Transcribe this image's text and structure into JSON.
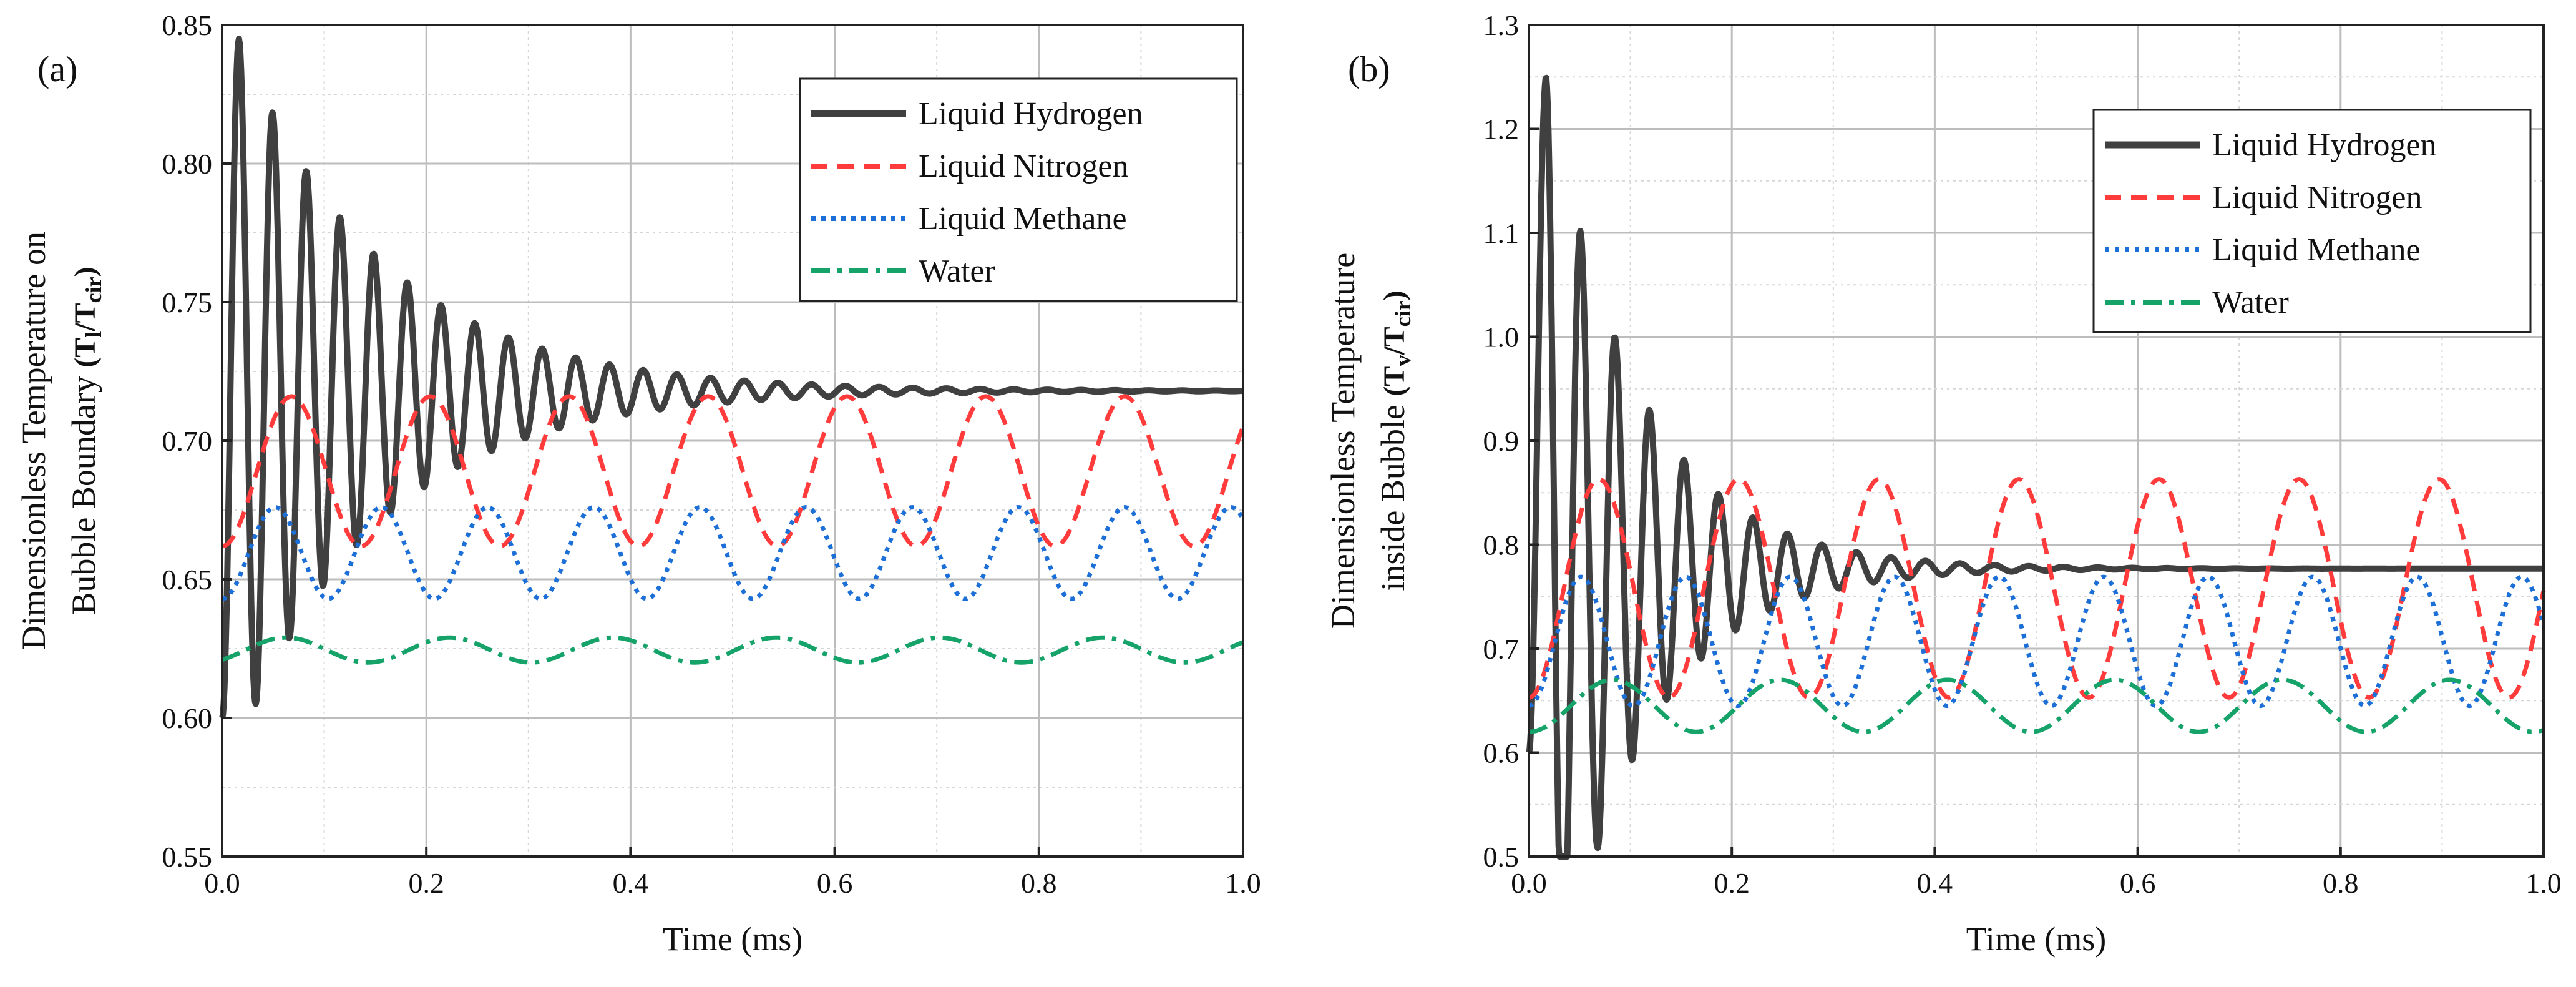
{
  "chart_data": [
    {
      "panel_label": "(a)",
      "type": "line",
      "xlabel": "Time (ms)",
      "ylabel_lines": [
        "Dimensionless Temperature on",
        "Bubble Boundary"
      ],
      "ylabel_symbol": {
        "open": "(T",
        "sub1": "l",
        "mid": "/T",
        "sub2": "cir",
        "close": ")"
      },
      "xlim": [
        0.0,
        1.0
      ],
      "ylim": [
        0.55,
        0.85
      ],
      "xticks": [
        "0.0",
        "0.2",
        "0.4",
        "0.6",
        "0.8",
        "1.0"
      ],
      "yticks": [
        "0.55",
        "0.60",
        "0.65",
        "0.70",
        "0.75",
        "0.80",
        "0.85"
      ],
      "grid": true,
      "legend_position": "top-right",
      "series": [
        {
          "name": "Liquid Hydrogen",
          "color": "#404040",
          "style": "solid",
          "start": 0.6,
          "final": 0.718,
          "first_peak": 0.845,
          "period": 0.033,
          "decay": 0.14,
          "damped": true
        },
        {
          "name": "Liquid Nitrogen",
          "color": "#ff3b3b",
          "style": "dashed",
          "start": 0.655,
          "mean": 0.689,
          "amplitude": 0.027,
          "min": 0.66,
          "max": 0.717,
          "period": 0.136,
          "damped": false
        },
        {
          "name": "Liquid Methane",
          "color": "#1c6fd6",
          "style": "dotted",
          "start": 0.64,
          "mean": 0.6595,
          "amplitude": 0.0165,
          "min": 0.642,
          "max": 0.677,
          "period": 0.104,
          "damped": false
        },
        {
          "name": "Water",
          "color": "#16a36a",
          "style": "dashdot",
          "start": 0.621,
          "mean": 0.6245,
          "amplitude": 0.0045,
          "min": 0.62,
          "max": 0.63,
          "period": 0.16,
          "damped": false
        }
      ]
    },
    {
      "panel_label": "(b)",
      "type": "line",
      "xlabel": "Time (ms)",
      "ylabel_lines": [
        "Dimensionless Temperature",
        "inside Bubble"
      ],
      "ylabel_symbol": {
        "open": "(T",
        "sub1": "v",
        "mid": "/T",
        "sub2": "cir",
        "close": ")"
      },
      "xlim": [
        0.0,
        1.0
      ],
      "ylim": [
        0.5,
        1.3
      ],
      "xticks": [
        "0.0",
        "0.2",
        "0.4",
        "0.6",
        "0.8",
        "1.0"
      ],
      "yticks": [
        "0.5",
        "0.6",
        "0.7",
        "0.8",
        "0.9",
        "1.0",
        "1.1",
        "1.2",
        "1.3"
      ],
      "grid": true,
      "legend_position": "top-right",
      "series": [
        {
          "name": "Liquid Hydrogen",
          "color": "#404040",
          "style": "solid",
          "start": 0.6,
          "final": 0.777,
          "first_peak": 1.25,
          "period": 0.034,
          "decay": 0.09,
          "damped": true
        },
        {
          "name": "Liquid Nitrogen",
          "color": "#ff3b3b",
          "style": "dashed",
          "start": 0.65,
          "mean": 0.758,
          "amplitude": 0.105,
          "min": 0.66,
          "max": 0.865,
          "period": 0.138,
          "damped": false
        },
        {
          "name": "Liquid Methane",
          "color": "#1c6fd6",
          "style": "dotted",
          "start": 0.64,
          "mean": 0.707,
          "amplitude": 0.062,
          "min": 0.645,
          "max": 0.77,
          "period": 0.103,
          "damped": false
        },
        {
          "name": "Water",
          "color": "#16a36a",
          "style": "dashdot",
          "start": 0.62,
          "mean": 0.645,
          "amplitude": 0.025,
          "min": 0.62,
          "max": 0.675,
          "period": 0.165,
          "damped": false
        }
      ]
    }
  ]
}
